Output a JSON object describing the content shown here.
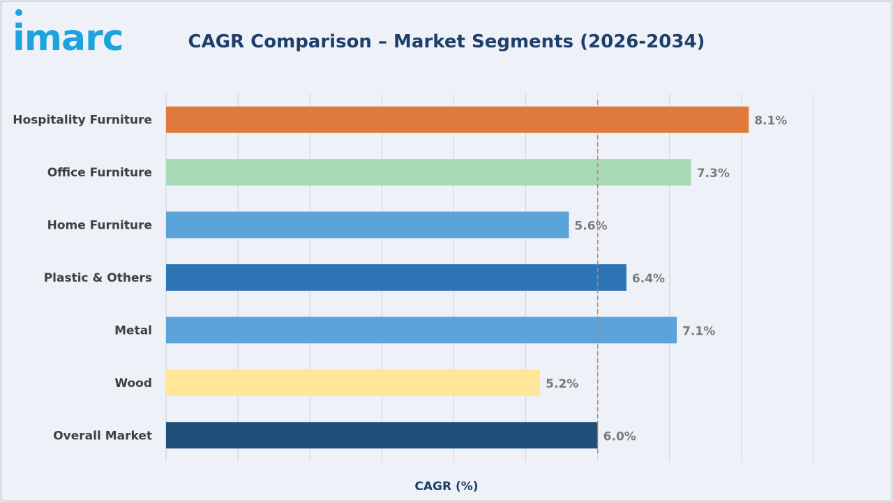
{
  "logo": {
    "text": "imarc",
    "color": "#1ea3dc"
  },
  "chart_data": {
    "type": "bar",
    "orientation": "horizontal",
    "title": "CAGR Comparison – Market Segments (2026-2034)",
    "xlabel": "CAGR (%)",
    "ylabel": "",
    "categories": [
      "Hospitality Furniture",
      "Office Furniture",
      "Home Furniture",
      "Plastic & Others",
      "Metal",
      "Wood",
      "Overall Market"
    ],
    "values": [
      8.1,
      7.3,
      5.6,
      6.4,
      7.1,
      5.2,
      6.0
    ],
    "value_labels": [
      "8.1%",
      "7.3%",
      "5.6%",
      "6.4%",
      "7.1%",
      "5.2%",
      "6.0%"
    ],
    "colors": [
      "#e07a3c",
      "#a8dab8",
      "#5ba3d9",
      "#2e75b6",
      "#5ba3d9",
      "#ffe699",
      "#1f4e79"
    ],
    "xlim": [
      0,
      9
    ],
    "reference_line": {
      "value": 6.0,
      "style": "dashed",
      "color": "#e07a3c"
    },
    "grid": true,
    "legend": "none"
  }
}
